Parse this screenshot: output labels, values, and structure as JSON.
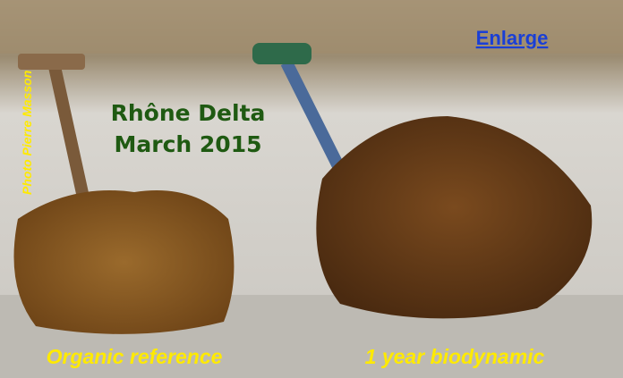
{
  "photo_credit": "Photo Pierre Masson",
  "caption": {
    "line1": "Rhône Delta",
    "line2": "March 2015"
  },
  "link": "Enlarge",
  "labels": [
    "Organic reference",
    "1 year biodynamic"
  ]
}
